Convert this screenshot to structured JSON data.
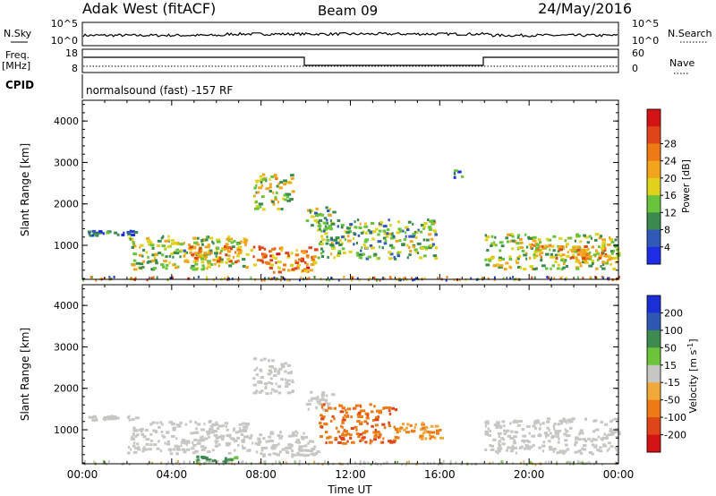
{
  "header": {
    "station": "Adak West (fitACF)",
    "beam": "Beam 09",
    "date": "24/May/2016"
  },
  "nsky_panel": {
    "left_label": "N.Sky",
    "right_label": "N.Search",
    "left_ticks": [
      "10^5",
      "10^0"
    ],
    "right_ticks": [
      "10^5",
      "10^0"
    ]
  },
  "freq_panel": {
    "left_label_top": "Freq.",
    "left_label_unit": "[MHz]",
    "right_label": "Nave",
    "left_ticks": [
      "18",
      "8"
    ],
    "right_ticks": [
      "60",
      "0"
    ]
  },
  "cpid": {
    "label": "CPID",
    "text": "normalsound (fast) -157 RF"
  },
  "time_axis": {
    "ticks": [
      "00:00",
      "04:00",
      "08:00",
      "12:00",
      "16:00",
      "20:00",
      "00:00"
    ],
    "label": "Time UT"
  },
  "colors": {
    "power": [
      "#1f2ee6",
      "#3159b8",
      "#3b8a4e",
      "#6ac43b",
      "#e0d21c",
      "#f2a51c",
      "#ee7a14",
      "#e0451a",
      "#d41414"
    ],
    "velocity": [
      "#1b2fd6",
      "#2f57b4",
      "#3e8b50",
      "#6bc43a",
      "#c6c6c2",
      "#f0a83a",
      "#ee7a14",
      "#e0451a",
      "#d41414"
    ]
  },
  "chart_data": [
    {
      "type": "heatmap",
      "title": "Power",
      "ylabel": "Slant Range [km]",
      "xlabel": "",
      "ylim": [
        180,
        4500
      ],
      "yticks": [
        "1000",
        "2000",
        "3000",
        "4000"
      ],
      "colorbar": {
        "label": "Power [dB]",
        "ticks": [
          "4",
          "8",
          "12",
          "16",
          "20",
          "24",
          "28"
        ],
        "range": [
          0,
          32
        ]
      },
      "regions": [
        {
          "t0": 0.2,
          "t1": 2.4,
          "r0": 1260,
          "r1": 1380,
          "value": 6
        },
        {
          "t0": 2.0,
          "t1": 7.4,
          "r0": 450,
          "r1": 1250,
          "value": 14
        },
        {
          "t0": 4.5,
          "t1": 7.0,
          "r0": 620,
          "r1": 1000,
          "value": 20
        },
        {
          "t0": 7.4,
          "t1": 10.5,
          "r0": 380,
          "r1": 1000,
          "value": 22
        },
        {
          "t0": 7.6,
          "t1": 9.4,
          "r0": 1900,
          "r1": 2750,
          "value": 15
        },
        {
          "t0": 10.0,
          "t1": 11.2,
          "r0": 1500,
          "r1": 1950,
          "value": 12
        },
        {
          "t0": 10.5,
          "t1": 15.8,
          "r0": 700,
          "r1": 1650,
          "value": 12
        },
        {
          "t0": 16.6,
          "t1": 17.0,
          "r0": 2650,
          "r1": 2850,
          "value": 8
        },
        {
          "t0": 18.0,
          "t1": 24.0,
          "r0": 450,
          "r1": 1300,
          "value": 14
        },
        {
          "t0": 20.0,
          "t1": 23.5,
          "r0": 700,
          "r1": 1050,
          "value": 20
        }
      ]
    },
    {
      "type": "heatmap",
      "title": "Velocity",
      "ylabel": "Slant Range [km]",
      "xlabel": "Time UT",
      "ylim": [
        180,
        4500
      ],
      "yticks": [
        "1000",
        "2000",
        "3000",
        "4000"
      ],
      "colorbar": {
        "label": "Velocity [m s^-1]",
        "ticks": [
          "200",
          "100",
          "50",
          "15",
          "-15",
          "-50",
          "-100",
          "-200"
        ]
      },
      "regions": [
        {
          "t0": 0.2,
          "t1": 2.4,
          "r0": 1260,
          "r1": 1380,
          "value": 0
        },
        {
          "t0": 2.0,
          "t1": 7.4,
          "r0": 450,
          "r1": 1250,
          "value": 0
        },
        {
          "t0": 7.4,
          "t1": 10.5,
          "r0": 380,
          "r1": 1000,
          "value": 0
        },
        {
          "t0": 7.6,
          "t1": 9.4,
          "r0": 1900,
          "r1": 2750,
          "value": 0
        },
        {
          "t0": 10.0,
          "t1": 11.2,
          "r0": 1500,
          "r1": 1950,
          "value": 0
        },
        {
          "t0": 10.5,
          "t1": 14.0,
          "r0": 700,
          "r1": 1650,
          "value": -70
        },
        {
          "t0": 14.0,
          "t1": 16.0,
          "r0": 800,
          "r1": 1200,
          "value": -30
        },
        {
          "t0": 18.0,
          "t1": 24.0,
          "r0": 450,
          "r1": 1300,
          "value": 0
        },
        {
          "t0": 5.0,
          "t1": 7.0,
          "r0": 250,
          "r1": 380,
          "value": 40
        }
      ]
    }
  ]
}
